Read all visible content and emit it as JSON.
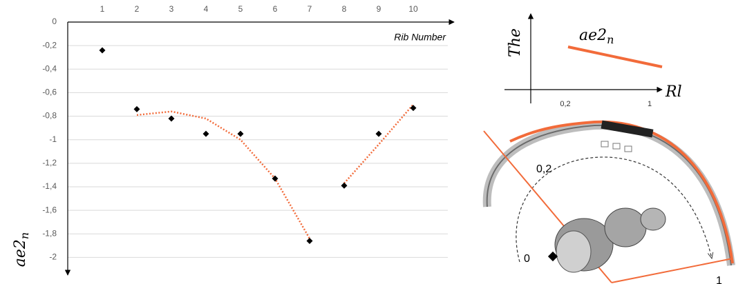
{
  "chart_data": {
    "type": "scatter",
    "x_label": "Rib Number",
    "y_label": "ae2",
    "y_label_sub": "n",
    "x": [
      1,
      2,
      3,
      4,
      5,
      6,
      7,
      8,
      9,
      10
    ],
    "series": [
      {
        "color": "#000000",
        "values": [
          -0.24,
          -0.74,
          -0.82,
          -0.95,
          -0.95,
          -1.33,
          -1.86,
          -1.39,
          -0.95,
          -0.73
        ]
      }
    ],
    "trends": [
      {
        "color": "#f26b3a",
        "x": [
          2,
          3,
          4,
          5,
          6,
          7
        ],
        "values": [
          -0.79,
          -0.76,
          -0.82,
          -1.0,
          -1.33,
          -1.84
        ]
      },
      {
        "color": "#f26b3a",
        "x": [
          8,
          9,
          10
        ],
        "values": [
          -1.37,
          -1.04,
          -0.7
        ]
      }
    ],
    "xlim": [
      0,
      11
    ],
    "xticks": [
      1,
      2,
      3,
      4,
      5,
      6,
      7,
      8,
      9,
      10
    ],
    "ylim": [
      -2.15,
      0
    ],
    "yticks": [
      0,
      {
        "value": -0.2,
        "label": "-0,2"
      },
      {
        "value": -0.4,
        "label": "-0,4"
      },
      {
        "value": -0.6,
        "label": "-0,6"
      },
      {
        "value": -0.8,
        "label": "-0,8"
      },
      -1,
      {
        "value": -1.2,
        "label": "-1,2"
      },
      {
        "value": -1.4,
        "label": "-1,4"
      },
      {
        "value": -1.6,
        "label": "-1,6"
      },
      {
        "value": -1.8,
        "label": "-1,8"
      },
      -2
    ],
    "grid": true
  },
  "inset": {
    "y_label": "The",
    "x_label": "Rl",
    "curve_label": "ae2",
    "curve_label_sub": "n",
    "ticks": [
      "0,2",
      "1"
    ]
  },
  "diagram": {
    "labels": [
      "0,2",
      "0",
      "1"
    ]
  }
}
